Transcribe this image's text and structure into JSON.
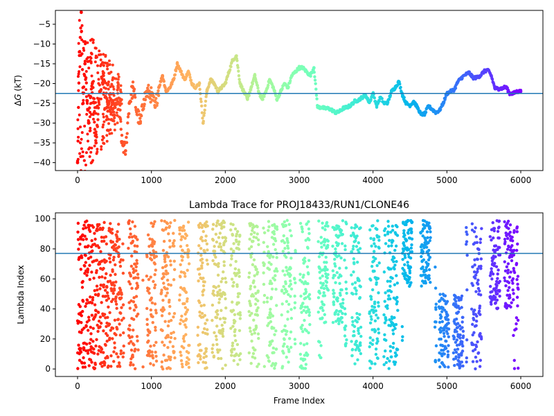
{
  "chart_data": [
    {
      "type": "scatter",
      "title": "",
      "xlabel": "",
      "ylabel_prefix": "Δ",
      "ylabel_var": "G",
      "ylabel_suffix": " (kT)",
      "xlim": [
        -300,
        6300
      ],
      "ylim": [
        -42,
        -1.5
      ],
      "xticks": [
        0,
        1000,
        2000,
        3000,
        4000,
        5000,
        6000
      ],
      "xtick_labels": [
        "0",
        "1000",
        "2000",
        "3000",
        "4000",
        "5000",
        "6000"
      ],
      "yticks": [
        -5,
        -10,
        -15,
        -20,
        -25,
        -30,
        -35,
        -40
      ],
      "ytick_labels": [
        "−5",
        "−10",
        "−15",
        "−20",
        "−25",
        "−30",
        "−35",
        "−40"
      ],
      "hline": -22.5,
      "hline_color": "#1f77b4",
      "colormap": "rainbow",
      "color_by": "frame index (red at start, purple at end)",
      "grid": false,
      "series": [
        {
          "x": [
            0,
            25,
            50,
            75,
            100,
            150,
            200,
            250,
            300,
            350,
            400,
            450,
            500,
            550,
            600,
            650,
            700,
            750,
            800,
            850,
            900,
            950,
            1000,
            1050,
            1100,
            1150,
            1200,
            1250,
            1300,
            1350,
            1400,
            1450,
            1500,
            1550,
            1600,
            1650,
            1700,
            1750,
            1800,
            1850,
            1900,
            1950,
            2000,
            2050,
            2100,
            2150,
            2200,
            2250,
            2300,
            2350,
            2400,
            2450,
            2500,
            2550,
            2600,
            2650,
            2700,
            2750,
            2800,
            2850,
            2900,
            2950,
            3000,
            3050,
            3100,
            3150,
            3200,
            3250,
            3300,
            3350,
            3400,
            3450,
            3500,
            3550,
            3600,
            3650,
            3700,
            3750,
            3800,
            3850,
            3900,
            3950,
            4000,
            4050,
            4100,
            4150,
            4200,
            4250,
            4300,
            4350,
            4400,
            4450,
            4500,
            4550,
            4600,
            4650,
            4700,
            4750,
            4800,
            4850,
            4900,
            4950,
            5000,
            5050,
            5100,
            5150,
            5200,
            5250,
            5300,
            5350,
            5400,
            5450,
            5500,
            5550,
            5600,
            5650,
            5700,
            5750,
            5800,
            5850,
            5900,
            5950,
            6000
          ],
          "y": [
            -40,
            -12,
            -2,
            -25,
            -15,
            -30,
            -20,
            -35,
            -22,
            -18,
            -26,
            -24,
            -28,
            -21,
            -35,
            -37,
            -25,
            -21,
            -27,
            -30,
            -24,
            -22,
            -23,
            -26,
            -21,
            -18,
            -22,
            -21,
            -19,
            -15,
            -17,
            -19,
            -17,
            -20,
            -21,
            -20,
            -30,
            -22,
            -19,
            -20,
            -22,
            -21,
            -20,
            -17,
            -14,
            -13,
            -20,
            -22,
            -24,
            -21,
            -18,
            -22,
            -24,
            -22,
            -19,
            -21,
            -24,
            -22,
            -20,
            -21,
            -18,
            -17,
            -16,
            -16,
            -17,
            -18,
            -16,
            -26,
            -26,
            -26.3,
            -26.3,
            -26.8,
            -27.4,
            -27,
            -26.2,
            -26,
            -25.5,
            -24.5,
            -24.2,
            -23.5,
            -23,
            -24.8,
            -22.5,
            -25.6,
            -23.5,
            -25,
            -24.8,
            -22,
            -21,
            -19.5,
            -23,
            -25,
            -25.5,
            -24.5,
            -26,
            -27.8,
            -27.7,
            -25.7,
            -26.5,
            -27.3,
            -26.8,
            -25,
            -22.5,
            -22,
            -21.5,
            -19.5,
            -18.5,
            -17.8,
            -17.2,
            -18.5,
            -18.5,
            -18,
            -17,
            -16.5,
            -18,
            -21.2,
            -21.3,
            -21.2,
            -20.8,
            -22.5,
            -22.5,
            -22,
            -22
          ]
        }
      ]
    },
    {
      "type": "scatter",
      "title": "Lambda Trace for PROJ18433/RUN1/CLONE46",
      "xlabel": "Frame Index",
      "ylabel": "Lambda Index",
      "xlim": [
        -300,
        6300
      ],
      "ylim": [
        -5,
        104
      ],
      "xticks": [
        0,
        1000,
        2000,
        3000,
        4000,
        5000,
        6000
      ],
      "xtick_labels": [
        "0",
        "1000",
        "2000",
        "3000",
        "4000",
        "5000",
        "6000"
      ],
      "yticks": [
        0,
        20,
        40,
        60,
        80,
        100
      ],
      "ytick_labels": [
        "0",
        "20",
        "40",
        "60",
        "80",
        "100"
      ],
      "hline": 77,
      "hline_color": "#1f77b4",
      "colormap": "rainbow",
      "color_by": "frame index (red at start, purple at end)",
      "grid": false,
      "lambda_range": [
        0,
        99
      ],
      "x_range": [
        0,
        6000
      ]
    }
  ]
}
